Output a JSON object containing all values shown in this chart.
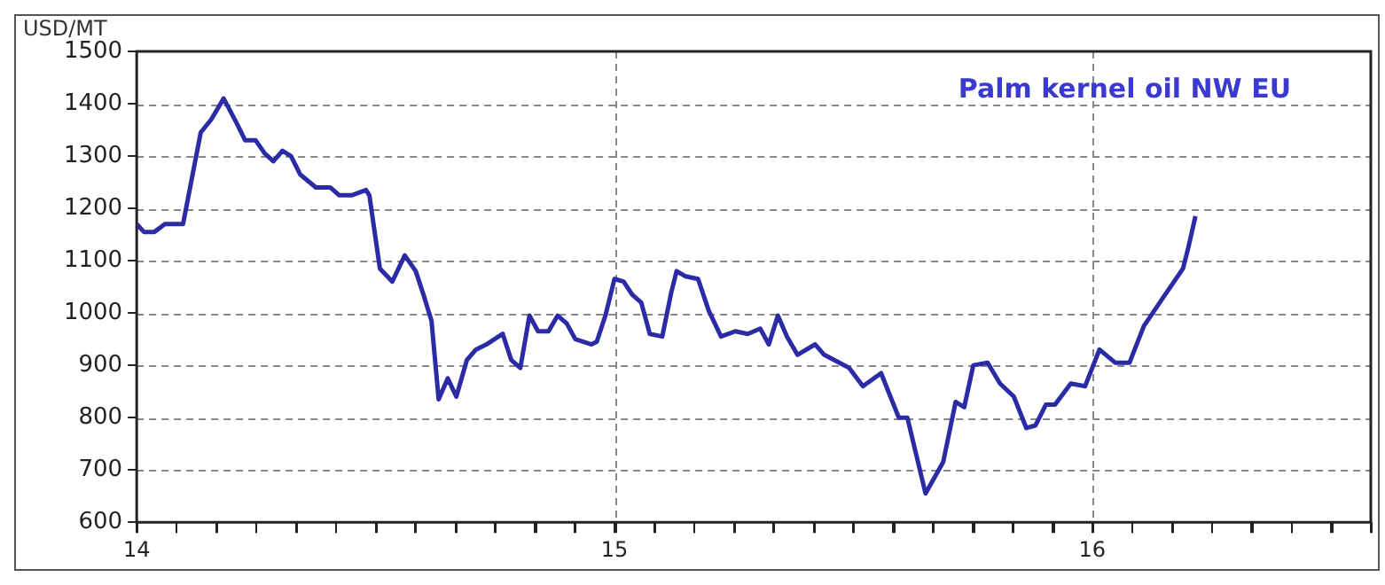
{
  "chart_data": {
    "type": "line",
    "ylabel": "USD/MT",
    "annotations": [
      "Palm kernel oil NW EU"
    ],
    "x": [
      14.0,
      14.015,
      14.037,
      14.059,
      14.097,
      14.134,
      14.156,
      14.182,
      14.208,
      14.227,
      14.249,
      14.268,
      14.286,
      14.305,
      14.323,
      14.342,
      14.375,
      14.405,
      14.424,
      14.45,
      14.48,
      14.487,
      14.509,
      14.535,
      14.561,
      14.584,
      14.602,
      14.617,
      14.632,
      14.651,
      14.669,
      14.691,
      14.71,
      14.732,
      14.766,
      14.784,
      14.803,
      14.822,
      14.84,
      14.862,
      14.881,
      14.9,
      14.918,
      14.952,
      14.963,
      14.981,
      15.0,
      15.019,
      15.037,
      15.056,
      15.074,
      15.1,
      15.119,
      15.13,
      15.149,
      15.175,
      15.197,
      15.223,
      15.253,
      15.279,
      15.305,
      15.323,
      15.342,
      15.361,
      15.383,
      15.42,
      15.439,
      15.491,
      15.52,
      15.558,
      15.595,
      15.613,
      15.651,
      15.688,
      15.714,
      15.732,
      15.751,
      15.781,
      15.807,
      15.836,
      15.862,
      15.881,
      15.903,
      15.922,
      15.955,
      15.985,
      16.015,
      16.048,
      16.078,
      16.108,
      16.145,
      16.19,
      16.201,
      16.216
    ],
    "series": [
      {
        "color": "#2b2ba6",
        "values": [
          1170,
          1155,
          1155,
          1170,
          1170,
          1345,
          1370,
          1410,
          1365,
          1330,
          1330,
          1305,
          1290,
          1310,
          1300,
          1265,
          1240,
          1240,
          1225,
          1225,
          1235,
          1225,
          1085,
          1060,
          1110,
          1080,
          1030,
          985,
          835,
          875,
          840,
          910,
          930,
          940,
          960,
          910,
          895,
          995,
          965,
          965,
          995,
          980,
          950,
          940,
          945,
          995,
          1065,
          1060,
          1035,
          1020,
          960,
          955,
          1040,
          1080,
          1070,
          1065,
          1005,
          955,
          965,
          960,
          970,
          940,
          995,
          955,
          920,
          940,
          920,
          895,
          860,
          885,
          800,
          800,
          655,
          715,
          830,
          820,
          900,
          905,
          865,
          840,
          780,
          785,
          825,
          825,
          865,
          860,
          930,
          905,
          905,
          975,
          1025,
          1085,
          1125,
          1185
        ]
      }
    ],
    "xlim": [
      14,
      16.583
    ],
    "xticks": [
      {
        "value": 14,
        "label": "14"
      },
      {
        "value": 14.083,
        "label": null
      },
      {
        "value": 14.167,
        "label": null
      },
      {
        "value": 14.25,
        "label": null
      },
      {
        "value": 14.333,
        "label": null
      },
      {
        "value": 14.417,
        "label": null
      },
      {
        "value": 14.5,
        "label": null
      },
      {
        "value": 14.583,
        "label": null
      },
      {
        "value": 14.667,
        "label": null
      },
      {
        "value": 14.75,
        "label": null
      },
      {
        "value": 14.833,
        "label": null
      },
      {
        "value": 14.917,
        "label": null
      },
      {
        "value": 15,
        "label": "15"
      },
      {
        "value": 15.083,
        "label": null
      },
      {
        "value": 15.167,
        "label": null
      },
      {
        "value": 15.25,
        "label": null
      },
      {
        "value": 15.333,
        "label": null
      },
      {
        "value": 15.417,
        "label": null
      },
      {
        "value": 15.5,
        "label": null
      },
      {
        "value": 15.583,
        "label": null
      },
      {
        "value": 15.667,
        "label": null
      },
      {
        "value": 15.75,
        "label": null
      },
      {
        "value": 15.833,
        "label": null
      },
      {
        "value": 15.917,
        "label": null
      },
      {
        "value": 16,
        "label": "16"
      },
      {
        "value": 16.083,
        "label": null
      },
      {
        "value": 16.167,
        "label": null
      },
      {
        "value": 16.25,
        "label": null
      },
      {
        "value": 16.333,
        "label": null
      },
      {
        "value": 16.417,
        "label": null
      },
      {
        "value": 16.5,
        "label": null
      },
      {
        "value": 16.583,
        "label": null
      }
    ],
    "ylim": [
      600,
      1500
    ],
    "yticks": [
      600,
      700,
      800,
      900,
      1000,
      1100,
      1200,
      1300,
      1400,
      1500
    ],
    "grid": true,
    "marker": "none",
    "line_style": "solid"
  }
}
